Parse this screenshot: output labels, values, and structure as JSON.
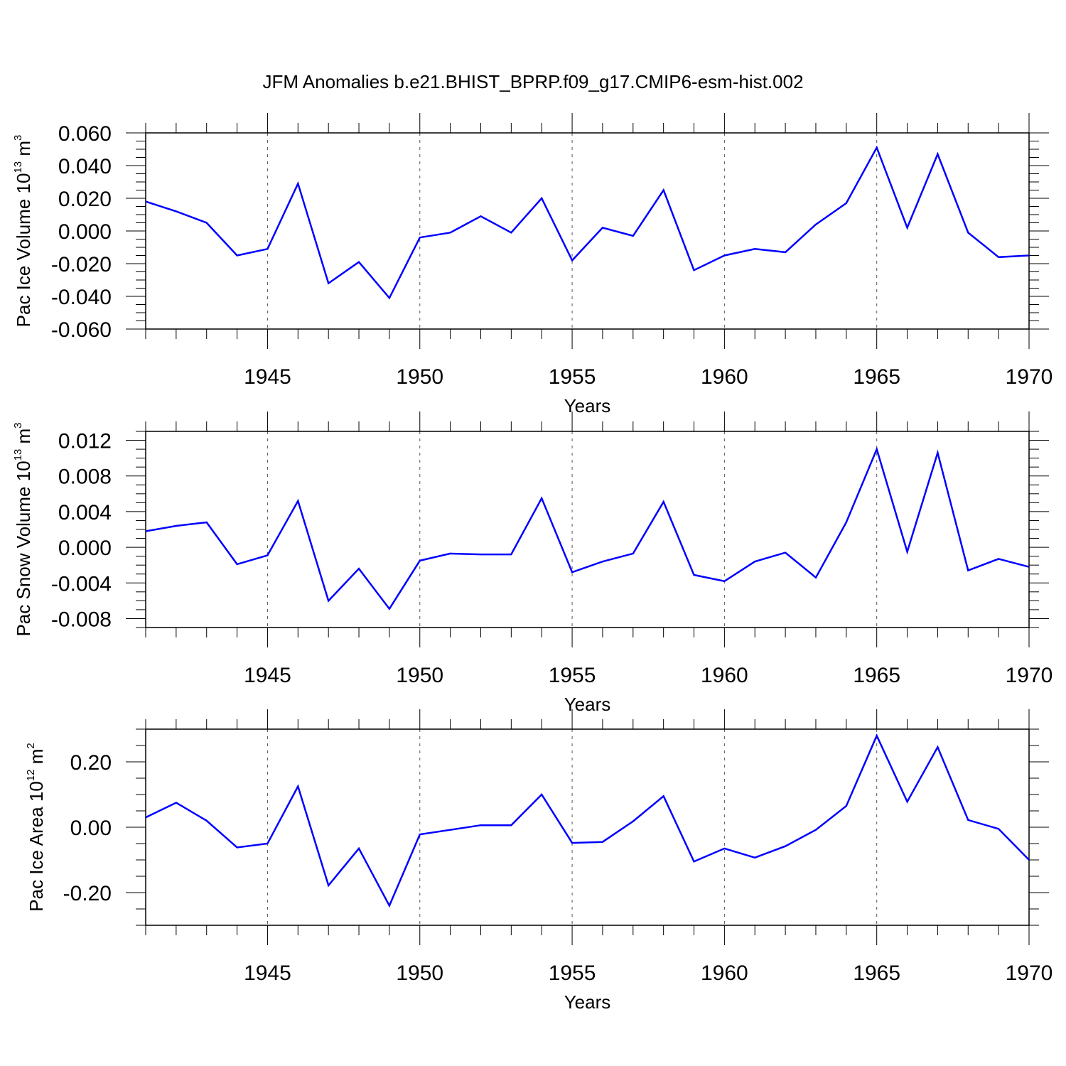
{
  "title": "JFM Anomalies b.e21.BHIST_BPRP.f09_g17.CMIP6-esm-hist.002",
  "chart_data": [
    {
      "type": "line",
      "xlabel": "Years",
      "ylabel_main": "Pac Ice Volume 10",
      "ylabel_exp": "13",
      "ylabel_unit": " m",
      "ylabel_unit_exp": "3",
      "xlim": [
        1941,
        1970
      ],
      "ylim": [
        -0.06,
        0.06
      ],
      "x_ticks": [
        1945,
        1950,
        1955,
        1960,
        1965,
        1970
      ],
      "x_tick_labels": [
        "1945",
        "1950",
        "1955",
        "1960",
        "1965",
        "1970"
      ],
      "y_ticks": [
        -0.06,
        -0.04,
        -0.02,
        0.0,
        0.02,
        0.04,
        0.06
      ],
      "y_tick_labels": [
        "-0.060",
        "-0.040",
        "-0.020",
        "0.000",
        "0.020",
        "0.040",
        "0.060"
      ],
      "y_minor_step": 0.005,
      "line_color": "#0000ff",
      "x": [
        1941,
        1942,
        1943,
        1944,
        1945,
        1946,
        1947,
        1948,
        1949,
        1950,
        1951,
        1952,
        1953,
        1954,
        1955,
        1956,
        1957,
        1958,
        1959,
        1960,
        1961,
        1962,
        1963,
        1964,
        1965,
        1966,
        1967,
        1968,
        1969,
        1970
      ],
      "y": [
        0.018,
        0.012,
        0.005,
        -0.015,
        -0.011,
        0.029,
        -0.032,
        -0.019,
        -0.041,
        -0.004,
        -0.001,
        0.009,
        -0.001,
        0.02,
        -0.018,
        0.002,
        -0.003,
        0.025,
        -0.024,
        -0.015,
        -0.011,
        -0.013,
        0.004,
        0.017,
        0.051,
        0.002,
        0.047,
        -0.001,
        -0.016,
        -0.015
      ]
    },
    {
      "type": "line",
      "xlabel": "Years",
      "ylabel_main": "Pac Snow Volume 10",
      "ylabel_exp": "13",
      "ylabel_unit": " m",
      "ylabel_unit_exp": "3",
      "xlim": [
        1941,
        1970
      ],
      "ylim": [
        -0.009,
        0.013
      ],
      "x_ticks": [
        1945,
        1950,
        1955,
        1960,
        1965,
        1970
      ],
      "x_tick_labels": [
        "1945",
        "1950",
        "1955",
        "1960",
        "1965",
        "1970"
      ],
      "y_ticks": [
        -0.008,
        -0.004,
        0.0,
        0.004,
        0.008,
        0.012
      ],
      "y_tick_labels": [
        "-0.008",
        "-0.004",
        "0.000",
        "0.004",
        "0.008",
        "0.012"
      ],
      "y_minor_step": 0.001,
      "line_color": "#0000ff",
      "x": [
        1941,
        1942,
        1943,
        1944,
        1945,
        1946,
        1947,
        1948,
        1949,
        1950,
        1951,
        1952,
        1953,
        1954,
        1955,
        1956,
        1957,
        1958,
        1959,
        1960,
        1961,
        1962,
        1963,
        1964,
        1965,
        1966,
        1967,
        1968,
        1969,
        1970
      ],
      "y": [
        0.0018,
        0.0024,
        0.0028,
        -0.0019,
        -0.0009,
        0.0052,
        -0.006,
        -0.0024,
        -0.0069,
        -0.0015,
        -0.0007,
        -0.0008,
        -0.0008,
        0.0055,
        -0.0028,
        -0.0016,
        -0.0007,
        0.0051,
        -0.0031,
        -0.0038,
        -0.0016,
        -0.0006,
        -0.0034,
        0.0028,
        0.011,
        -0.0005,
        0.0106,
        -0.0026,
        -0.0013,
        -0.0022
      ]
    },
    {
      "type": "line",
      "xlabel": "Years",
      "ylabel_main": "Pac Ice Area 10",
      "ylabel_exp": "12",
      "ylabel_unit": " m",
      "ylabel_unit_exp": "2",
      "xlim": [
        1941,
        1970
      ],
      "ylim": [
        -0.3,
        0.3
      ],
      "x_ticks": [
        1945,
        1950,
        1955,
        1960,
        1965,
        1970
      ],
      "x_tick_labels": [
        "1945",
        "1950",
        "1955",
        "1960",
        "1965",
        "1970"
      ],
      "y_ticks": [
        -0.2,
        0.0,
        0.2
      ],
      "y_tick_labels": [
        "-0.20",
        "0.00",
        "0.20"
      ],
      "y_minor_step": 0.05,
      "line_color": "#0000ff",
      "x": [
        1941,
        1942,
        1943,
        1944,
        1945,
        1946,
        1947,
        1948,
        1949,
        1950,
        1951,
        1952,
        1953,
        1954,
        1955,
        1956,
        1957,
        1958,
        1959,
        1960,
        1961,
        1962,
        1963,
        1964,
        1965,
        1966,
        1967,
        1968,
        1969,
        1970
      ],
      "y": [
        0.03,
        0.075,
        0.02,
        -0.062,
        -0.05,
        0.125,
        -0.178,
        -0.065,
        -0.24,
        -0.022,
        -0.008,
        0.006,
        0.006,
        0.1,
        -0.048,
        -0.045,
        0.018,
        0.095,
        -0.105,
        -0.065,
        -0.093,
        -0.058,
        -0.008,
        0.065,
        0.28,
        0.078,
        0.245,
        0.022,
        -0.005,
        -0.1
      ]
    }
  ]
}
